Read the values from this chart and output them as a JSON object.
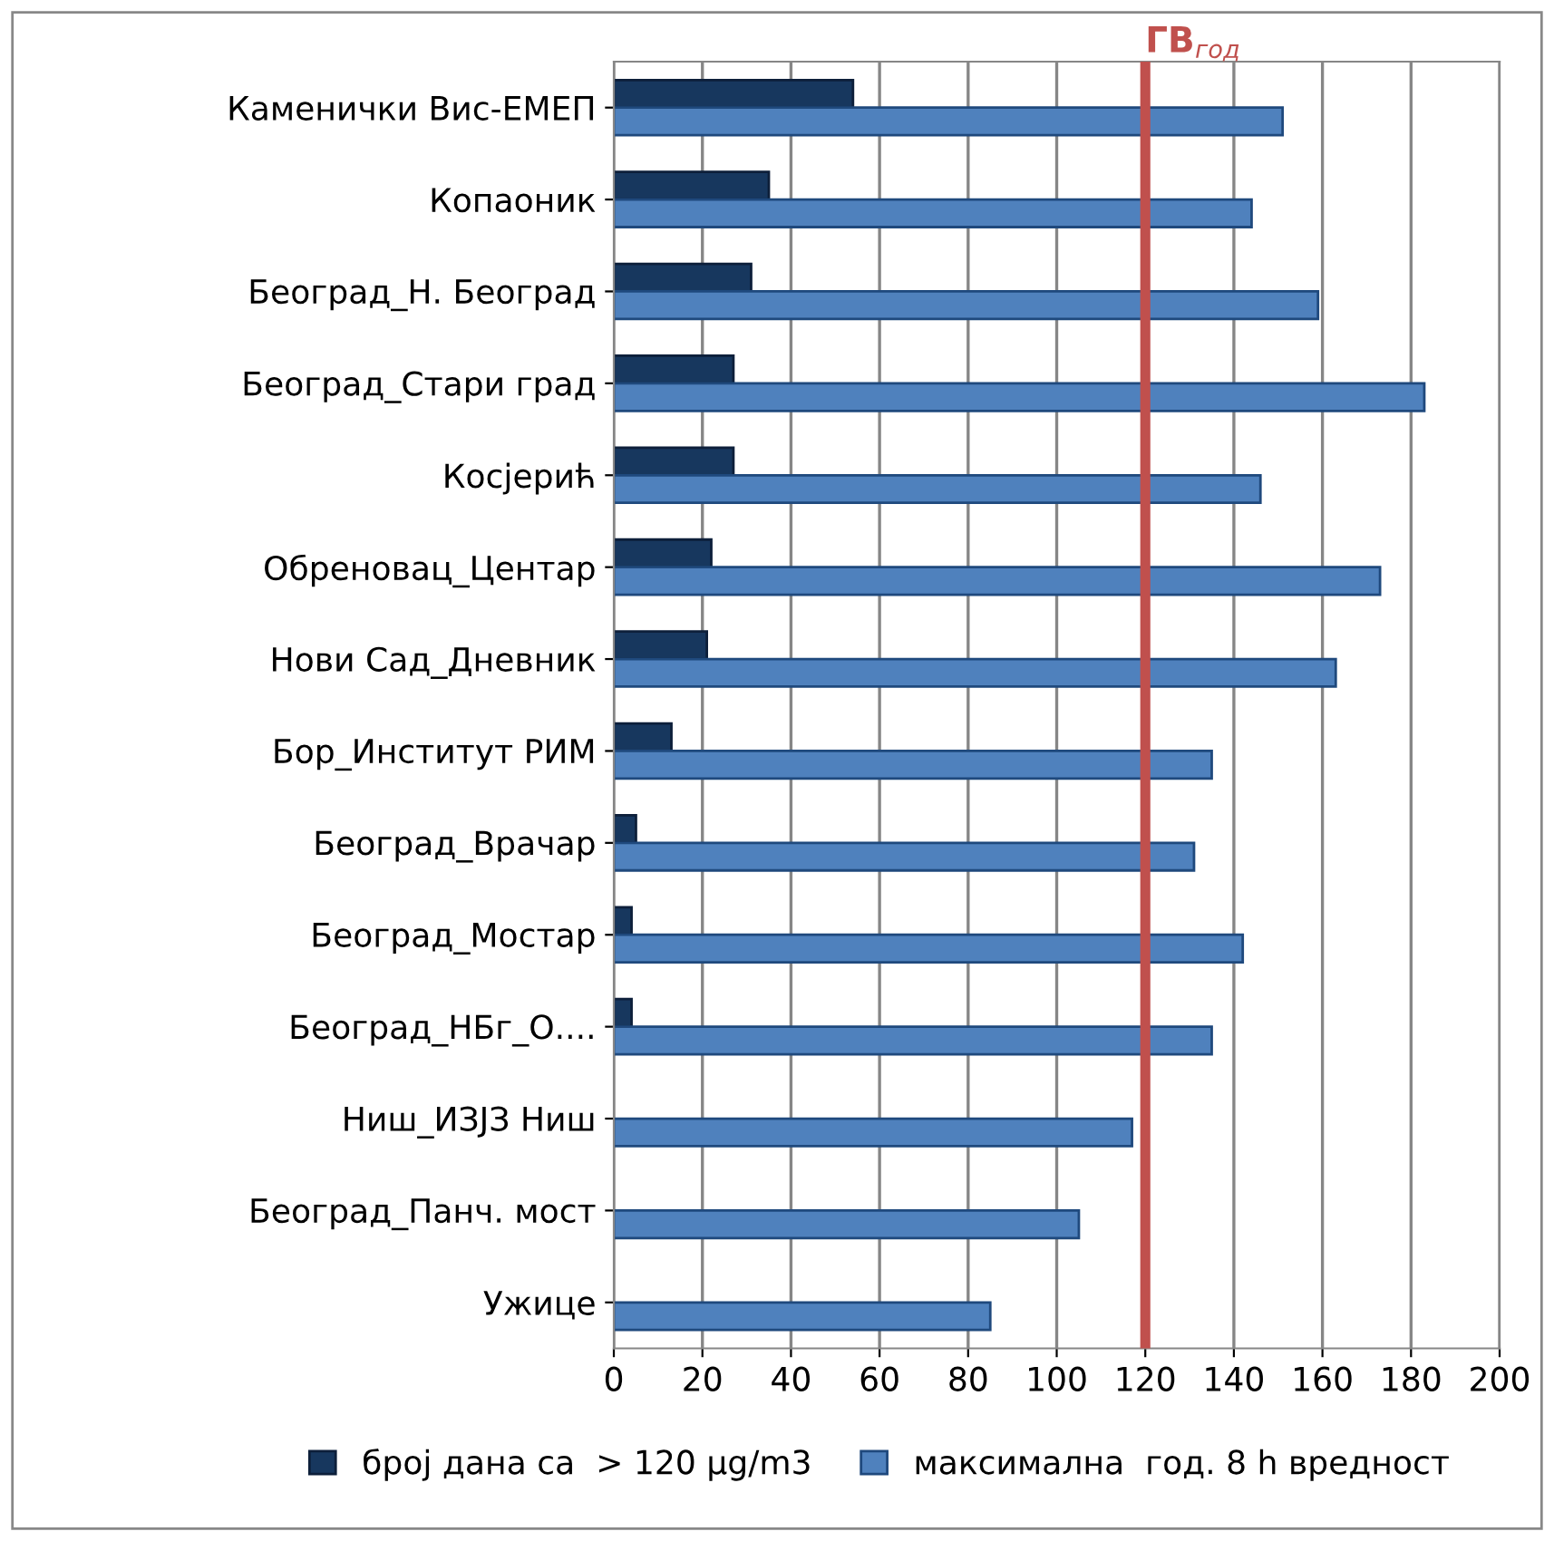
{
  "chart_data": {
    "type": "bar",
    "orientation": "horizontal",
    "categories": [
      "Каменички Вис-ЕМЕП",
      "Копаоник",
      "Београд_Н. Београд",
      "Београд_Стари град",
      "Косјерић",
      "Обреновац_Центар",
      "Нови Сад_Дневник",
      "Бор_Институт РИМ",
      "Београд_Врачар",
      "Београд_Мостар",
      "Београд_НБг_О....",
      "Ниш_ИЗЈЗ Ниш",
      "Београд_Панч. мост",
      "Ужице"
    ],
    "series": [
      {
        "name": "број дана са  > 120 µg/m3",
        "color": "#17375e",
        "values": [
          54,
          35,
          31,
          27,
          27,
          22,
          21,
          13,
          5,
          4,
          4,
          null,
          null,
          null
        ]
      },
      {
        "name": "максимална  год. 8 h вредност",
        "color": "#4f81bd",
        "values": [
          151,
          144,
          159,
          183,
          146,
          173,
          163,
          135,
          131,
          142,
          135,
          117,
          105,
          85
        ]
      }
    ],
    "xlim": [
      0,
      200
    ],
    "xticks": [
      0,
      20,
      40,
      60,
      80,
      100,
      120,
      140,
      160,
      180,
      200
    ],
    "ref_lines": [
      {
        "axis": "x",
        "value": 120,
        "label": "ГВ$_{год}$",
        "color": "#c0504d"
      }
    ],
    "grid": "x",
    "legend": "bottom"
  }
}
